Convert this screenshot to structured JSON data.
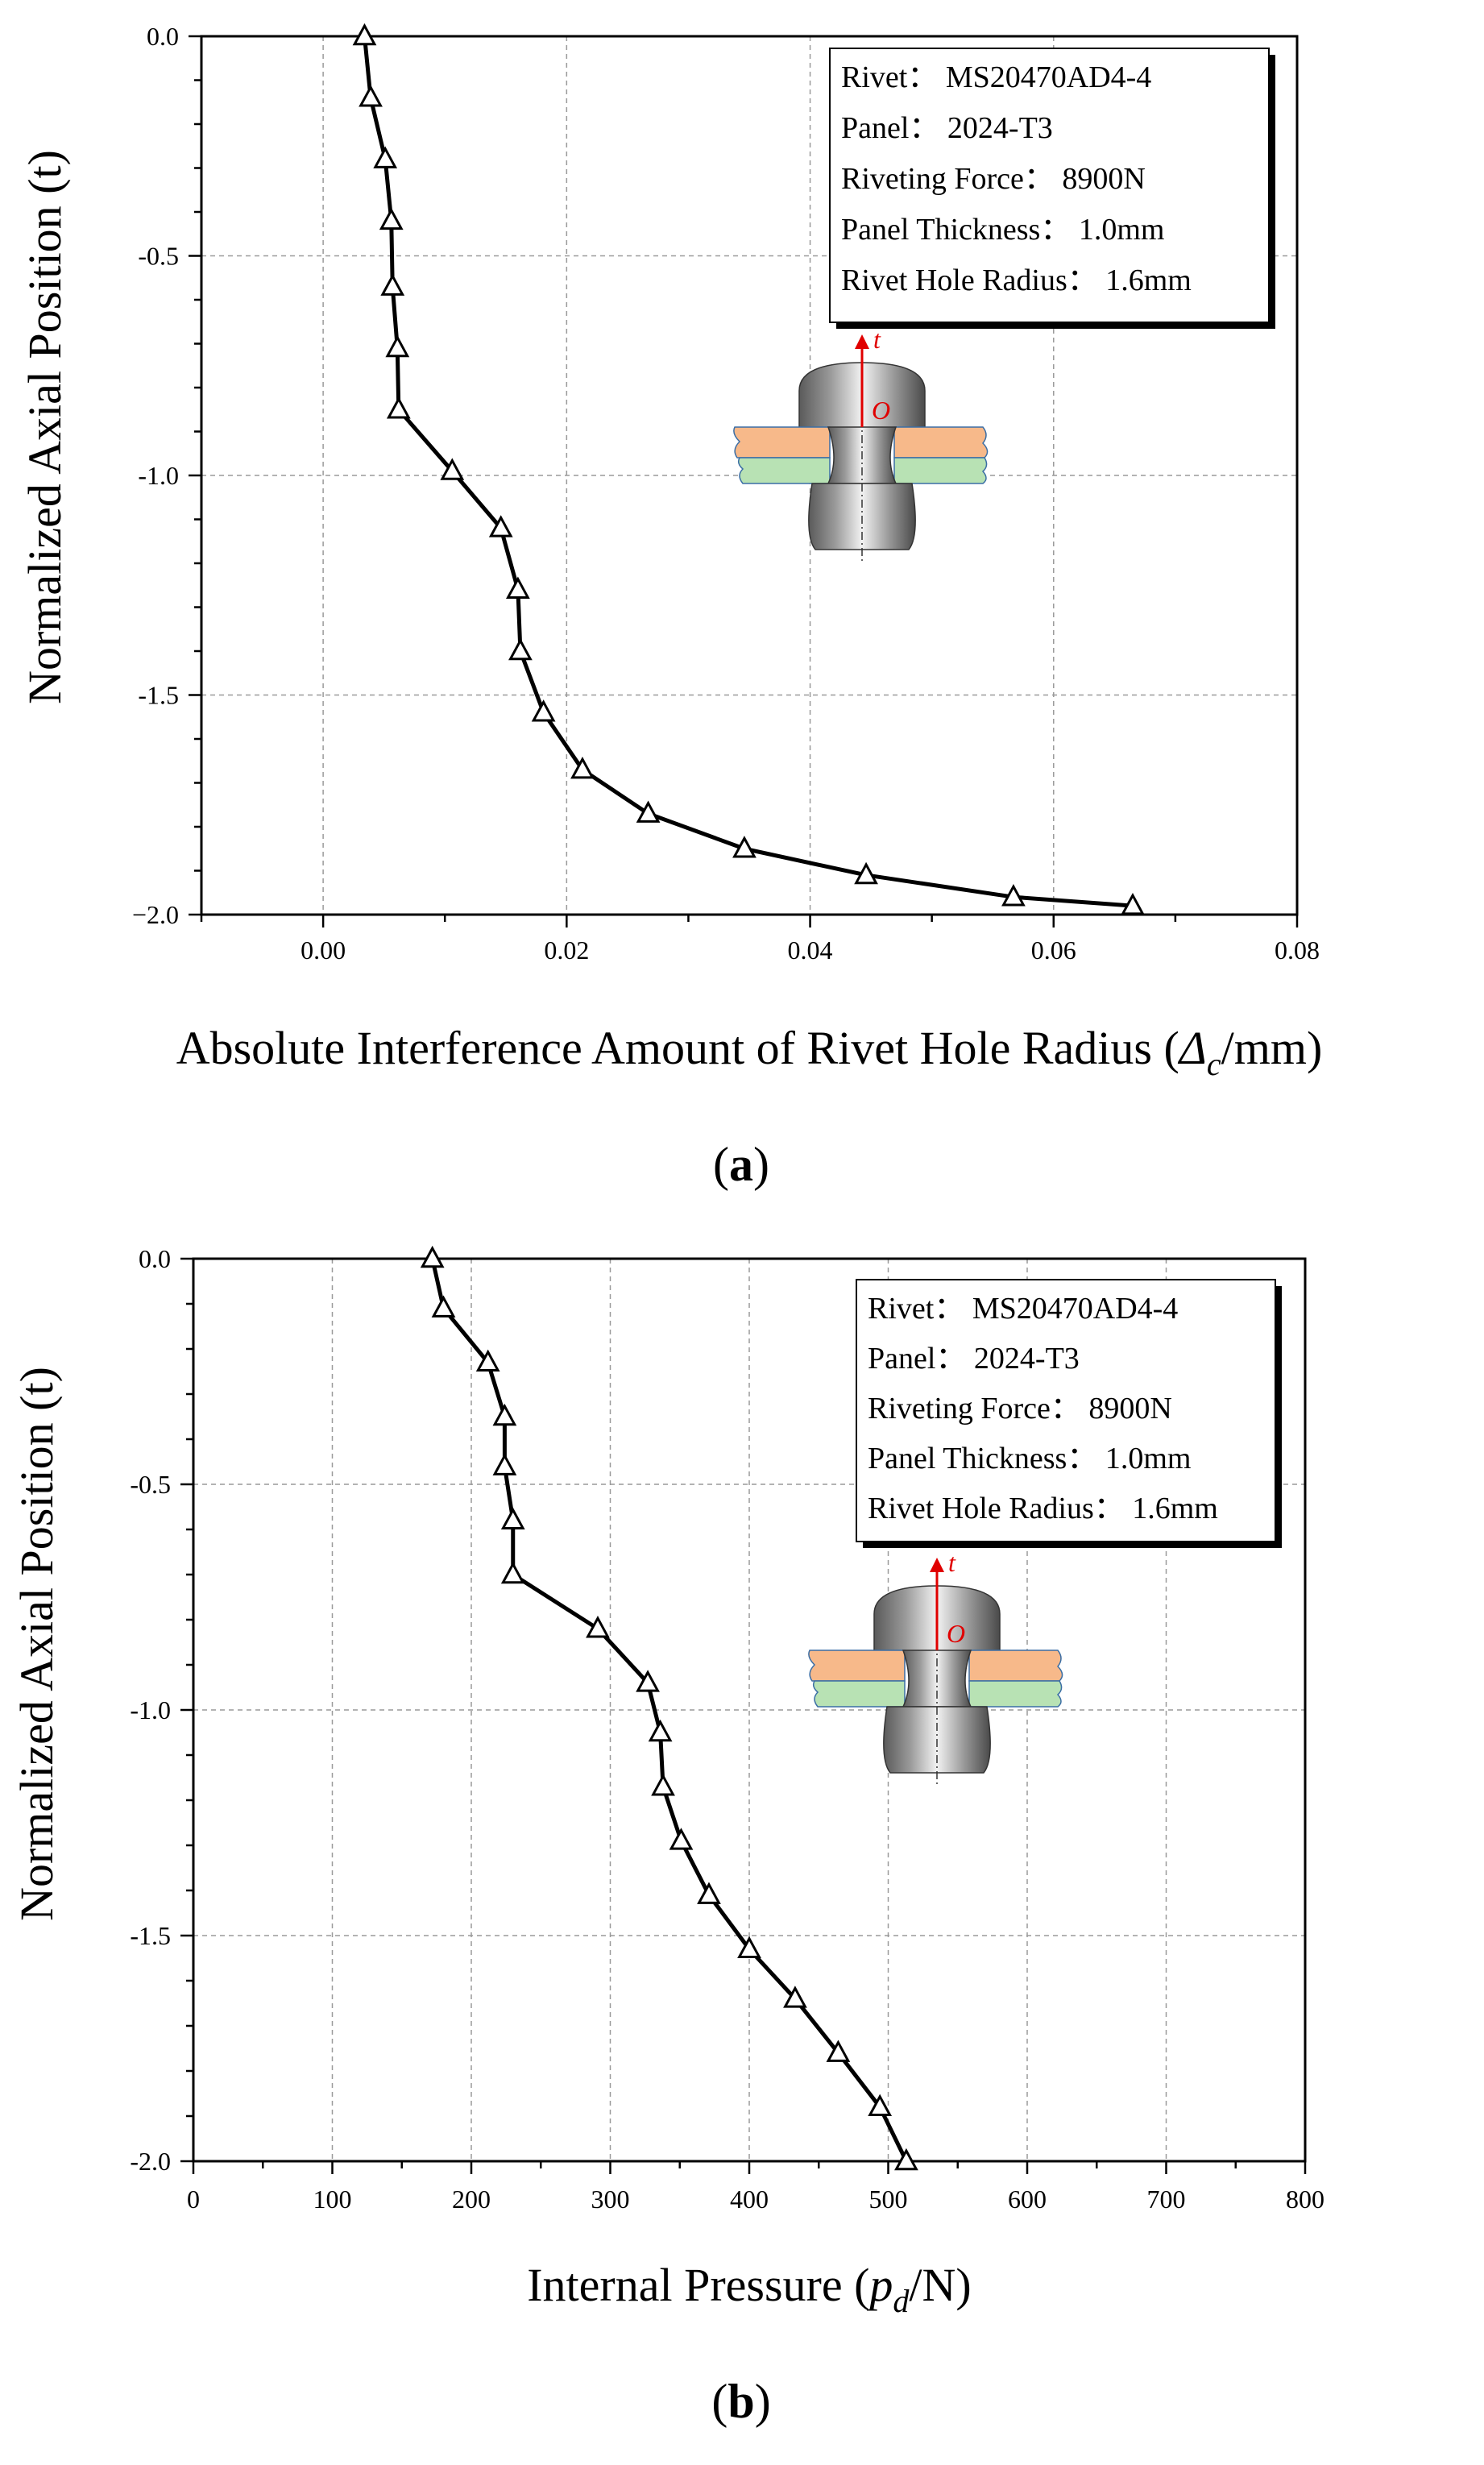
{
  "chart_data": [
    {
      "type": "line",
      "panel_label": "(a)",
      "xlabel": "Absolute Interference Amount of Rivet Hole Radius (Δc/mm)",
      "xlabel_parts": {
        "prefix": "Absolute Interference Amount of Rivet Hole Radius (",
        "symbol": "Δ",
        "subscript": "c",
        "suffix": "/mm)"
      },
      "ylabel": "Normalized Axial Position (t)",
      "xlim": [
        -0.01,
        0.08
      ],
      "ylim": [
        -2.0,
        0.0
      ],
      "x_ticks": [
        0.0,
        0.02,
        0.04,
        0.06,
        0.08
      ],
      "x_tick_labels": [
        "0.00",
        "0.02",
        "0.04",
        "0.06",
        "0.08"
      ],
      "y_ticks": [
        0.0,
        -0.5,
        -1.0,
        -1.5,
        -2.0
      ],
      "y_tick_labels": [
        "0.0",
        "-0.5",
        "-1.0",
        "-1.5",
        "−2.0"
      ],
      "grid": true,
      "marker": "triangle-open",
      "series": [
        {
          "name": "Absolute interference",
          "x": [
            0.0034,
            0.0039,
            0.0051,
            0.0056,
            0.0057,
            0.0061,
            0.0062,
            0.0106,
            0.0146,
            0.016,
            0.0162,
            0.0181,
            0.0213,
            0.0267,
            0.0346,
            0.0446,
            0.0567,
            0.0665
          ],
          "y": [
            0.0,
            -0.14,
            -0.28,
            -0.42,
            -0.57,
            -0.71,
            -0.85,
            -0.99,
            -1.12,
            -1.26,
            -1.4,
            -1.54,
            -1.67,
            -1.77,
            -1.85,
            -1.91,
            -1.96,
            -1.98
          ]
        }
      ],
      "legend": {
        "placement": "top-right",
        "lines": [
          "Rivet： MS20470AD4-4",
          "Panel： 2024-T3",
          "Riveting Force： 8900N",
          "Panel Thickness： 1.0mm",
          "Rivet Hole Radius： 1.6mm"
        ]
      },
      "inset": {
        "axis_label": "t",
        "origin_label": "O"
      }
    },
    {
      "type": "line",
      "panel_label": "(b)",
      "xlabel": "Internal Pressure (pd/N)",
      "xlabel_parts": {
        "prefix": "Internal Pressure (",
        "symbol": "p",
        "subscript": "d",
        "suffix": "/N)"
      },
      "ylabel": "Normalized Axial Position (t)",
      "xlim": [
        0,
        800
      ],
      "ylim": [
        -2.0,
        0.0
      ],
      "x_ticks": [
        0,
        100,
        200,
        300,
        400,
        500,
        600,
        700,
        800
      ],
      "x_tick_labels": [
        "0",
        "100",
        "200",
        "300",
        "400",
        "500",
        "600",
        "700",
        "800"
      ],
      "y_ticks": [
        0.0,
        -0.5,
        -1.0,
        -1.5,
        -2.0
      ],
      "y_tick_labels": [
        "0.0",
        "-0.5",
        "-1.0",
        "-1.5",
        "-2.0"
      ],
      "grid": true,
      "marker": "triangle-open",
      "series": [
        {
          "name": "Internal pressure",
          "x": [
            172,
            180,
            212,
            224,
            224,
            230,
            230,
            291,
            327,
            336,
            338,
            351,
            371,
            400,
            433,
            464,
            494,
            513
          ],
          "y": [
            0.0,
            -0.11,
            -0.23,
            -0.35,
            -0.46,
            -0.58,
            -0.7,
            -0.82,
            -0.94,
            -1.05,
            -1.17,
            -1.29,
            -1.41,
            -1.53,
            -1.64,
            -1.76,
            -1.88,
            -2.0
          ]
        }
      ],
      "legend": {
        "placement": "top-right",
        "lines": [
          "Rivet： MS20470AD4-4",
          "Panel： 2024-T3",
          "Riveting Force： 8900N",
          "Panel Thickness： 1.0mm",
          "Rivet Hole Radius： 1.6mm"
        ]
      },
      "inset": {
        "axis_label": "t",
        "origin_label": "O"
      }
    }
  ]
}
